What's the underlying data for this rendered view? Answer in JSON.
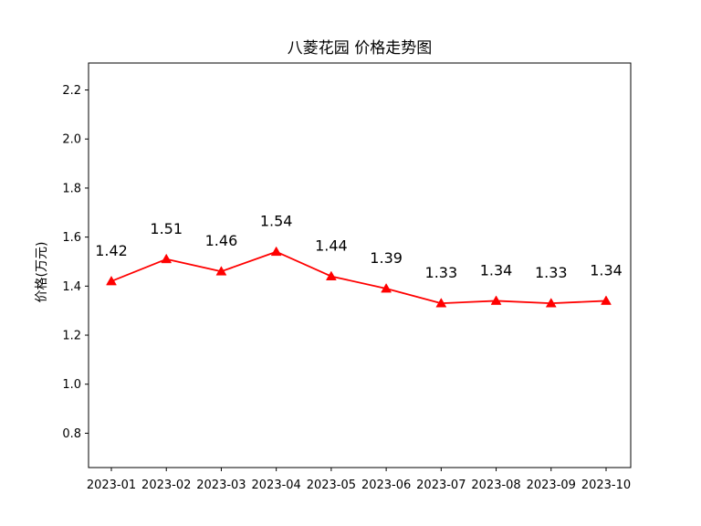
{
  "chart_data": {
    "type": "line",
    "title": "八菱花园 价格走势图",
    "xlabel": "",
    "ylabel": "价格(万元)",
    "categories": [
      "2023-01",
      "2023-02",
      "2023-03",
      "2023-04",
      "2023-05",
      "2023-06",
      "2023-07",
      "2023-08",
      "2023-09",
      "2023-10"
    ],
    "series": [
      {
        "values": [
          1.42,
          1.51,
          1.46,
          1.54,
          1.44,
          1.39,
          1.33,
          1.34,
          1.33,
          1.34
        ],
        "labels": [
          "1.42",
          "1.51",
          "1.46",
          "1.54",
          "1.44",
          "1.39",
          "1.33",
          "1.34",
          "1.33",
          "1.34"
        ],
        "color": "#ff0000",
        "marker": "triangle"
      }
    ],
    "ylim": [
      0.66,
      2.31
    ],
    "yticks": [
      0.8,
      1.0,
      1.2,
      1.4,
      1.6,
      1.8,
      2.0,
      2.2
    ],
    "ytick_labels": [
      "0.8",
      "1.0",
      "1.2",
      "1.4",
      "1.6",
      "1.8",
      "2.0",
      "2.2"
    ],
    "grid": false,
    "legend": "none"
  }
}
